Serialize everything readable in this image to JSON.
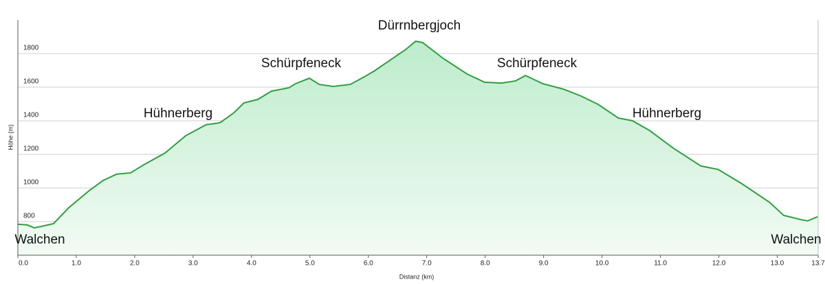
{
  "chart_data": {
    "type": "area",
    "x_label": "Distanz  (km)",
    "y_label": "Höhe (m)",
    "x": [
      0,
      0.16,
      0.28,
      0.4,
      0.61,
      0.87,
      1.22,
      1.46,
      1.69,
      1.93,
      2.16,
      2.52,
      2.87,
      3.22,
      3.46,
      3.69,
      3.87,
      4.11,
      4.34,
      4.64,
      4.75,
      4.99,
      5.16,
      5.4,
      5.69,
      5.93,
      6.11,
      6.4,
      6.64,
      6.81,
      6.93,
      7.28,
      7.69,
      7.99,
      8.28,
      8.52,
      8.69,
      8.99,
      9.34,
      9.64,
      9.93,
      10.28,
      10.52,
      10.81,
      11.22,
      11.69,
      11.99,
      12.4,
      12.87,
      13.11,
      13.4,
      13.52,
      13.69
    ],
    "values": [
      784,
      780,
      763,
      771,
      788,
      882,
      984,
      1045,
      1082,
      1090,
      1139,
      1208,
      1310,
      1376,
      1388,
      1445,
      1506,
      1527,
      1576,
      1596,
      1620,
      1653,
      1616,
      1604,
      1616,
      1661,
      1698,
      1767,
      1824,
      1873,
      1865,
      1771,
      1678,
      1629,
      1624,
      1637,
      1669,
      1620,
      1588,
      1547,
      1498,
      1416,
      1400,
      1343,
      1237,
      1131,
      1110,
      1024,
      914,
      837,
      812,
      804,
      829
    ],
    "color": "#2e9e3e",
    "xlim": [
      0,
      13.7
    ],
    "ylim": [
      600,
      2000
    ],
    "xticks": [
      {
        "value": 0,
        "label": "0.0"
      },
      {
        "value": 1,
        "label": "1.0"
      },
      {
        "value": 2,
        "label": "2.0"
      },
      {
        "value": 3,
        "label": "3.0"
      },
      {
        "value": 4,
        "label": "4.0"
      },
      {
        "value": 5,
        "label": "5.0"
      },
      {
        "value": 6,
        "label": "6.0"
      },
      {
        "value": 7,
        "label": "7.0"
      },
      {
        "value": 8,
        "label": "8.0"
      },
      {
        "value": 9,
        "label": "9.0"
      },
      {
        "value": 10,
        "label": "10.0"
      },
      {
        "value": 11,
        "label": "11.0"
      },
      {
        "value": 12,
        "label": "12.0"
      },
      {
        "value": 13,
        "label": "13.0"
      },
      13.7
    ],
    "yticks": [
      800,
      1000,
      1200,
      1400,
      1600,
      1800
    ],
    "grid": true,
    "annotations": [
      "Walchen",
      "Hühnerberg",
      "Schürpfeneck",
      "Dürrnbergjoch",
      "Schürpfeneck",
      "Hühnerberg",
      "Walchen"
    ]
  }
}
